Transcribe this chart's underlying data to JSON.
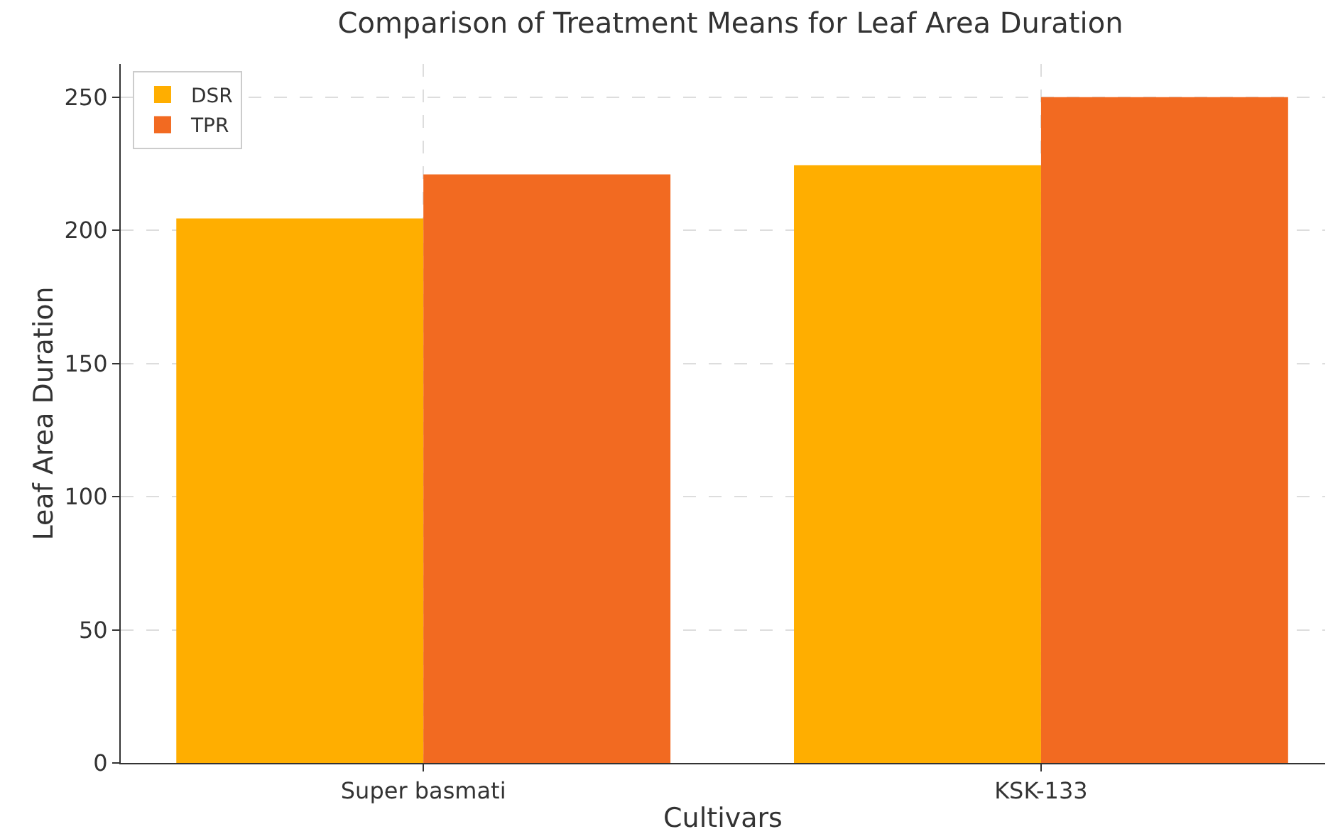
{
  "chart_data": {
    "type": "bar",
    "title": "Comparison of Treatment Means for Leaf Area Duration",
    "xlabel": "Cultivars",
    "ylabel": "Leaf Area Duration",
    "categories": [
      "Super basmati",
      "KSK-133"
    ],
    "series": [
      {
        "name": "DSR",
        "color": "#ffae00",
        "values": [
          204.5,
          224.5
        ]
      },
      {
        "name": "TPR",
        "color": "#f26a21",
        "values": [
          221,
          250
        ]
      }
    ],
    "ylim": [
      0,
      262.5
    ],
    "yticks": [
      0,
      50,
      100,
      150,
      200,
      250
    ],
    "grid": true,
    "legend": "top left"
  }
}
